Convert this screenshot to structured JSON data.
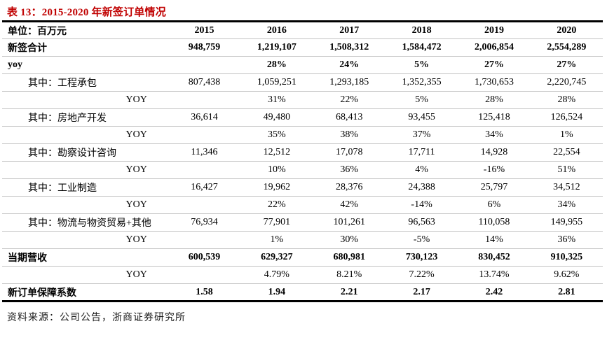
{
  "title": "表 13：2015-2020 年新签订单情况",
  "source": "资料来源：公司公告，浙商证券研究所",
  "colors": {
    "title_red": "#c00000",
    "border_dark": "#000000",
    "border_light": "#c3c3c3",
    "background": "#ffffff"
  },
  "table": {
    "unit_label": "单位：百万元",
    "years": [
      "2015",
      "2016",
      "2017",
      "2018",
      "2019",
      "2020"
    ],
    "rows": [
      {
        "label": "新签合计",
        "style": "bold",
        "indent": "none",
        "values": [
          "948,759",
          "1,219,107",
          "1,508,312",
          "1,584,472",
          "2,006,854",
          "2,554,289"
        ]
      },
      {
        "label": "yoy",
        "style": "bold",
        "indent": "none",
        "values": [
          "",
          "28%",
          "24%",
          "5%",
          "27%",
          "27%"
        ]
      },
      {
        "label": "其中：工程承包",
        "style": "normal",
        "indent": "sub",
        "values": [
          "807,438",
          "1,059,251",
          "1,293,185",
          "1,352,355",
          "1,730,653",
          "2,220,745"
        ]
      },
      {
        "label": "YOY",
        "style": "normal",
        "indent": "yoy",
        "values": [
          "",
          "31%",
          "22%",
          "5%",
          "28%",
          "28%"
        ]
      },
      {
        "label": "其中：房地产开发",
        "style": "normal",
        "indent": "sub",
        "values": [
          "36,614",
          "49,480",
          "68,413",
          "93,455",
          "125,418",
          "126,524"
        ]
      },
      {
        "label": "YOY",
        "style": "normal",
        "indent": "yoy",
        "values": [
          "",
          "35%",
          "38%",
          "37%",
          "34%",
          "1%"
        ]
      },
      {
        "label": "其中：勘察设计咨询",
        "style": "normal",
        "indent": "sub",
        "values": [
          "11,346",
          "12,512",
          "17,078",
          "17,711",
          "14,928",
          "22,554"
        ]
      },
      {
        "label": "YOY",
        "style": "normal",
        "indent": "yoy",
        "values": [
          "",
          "10%",
          "36%",
          "4%",
          "-16%",
          "51%"
        ]
      },
      {
        "label": "其中：工业制造",
        "style": "normal",
        "indent": "sub",
        "values": [
          "16,427",
          "19,962",
          "28,376",
          "24,388",
          "25,797",
          "34,512"
        ]
      },
      {
        "label": "YOY",
        "style": "normal",
        "indent": "yoy",
        "values": [
          "",
          "22%",
          "42%",
          "-14%",
          "6%",
          "34%"
        ]
      },
      {
        "label": "其中：物流与物资贸易+其他",
        "style": "normal",
        "indent": "sub",
        "values": [
          "76,934",
          "77,901",
          "101,261",
          "96,563",
          "110,058",
          "149,955"
        ]
      },
      {
        "label": "YOY",
        "style": "normal",
        "indent": "yoy",
        "values": [
          "",
          "1%",
          "30%",
          "-5%",
          "14%",
          "36%"
        ]
      },
      {
        "label": "当期营收",
        "style": "bold",
        "indent": "none",
        "values": [
          "600,539",
          "629,327",
          "680,981",
          "730,123",
          "830,452",
          "910,325"
        ]
      },
      {
        "label": "YOY",
        "style": "normal",
        "indent": "yoy",
        "values": [
          "",
          "4.79%",
          "8.21%",
          "7.22%",
          "13.74%",
          "9.62%"
        ]
      },
      {
        "label": "新订单保障系数",
        "style": "bold",
        "indent": "none",
        "values": [
          "1.58",
          "1.94",
          "2.21",
          "2.17",
          "2.42",
          "2.81"
        ]
      }
    ]
  }
}
